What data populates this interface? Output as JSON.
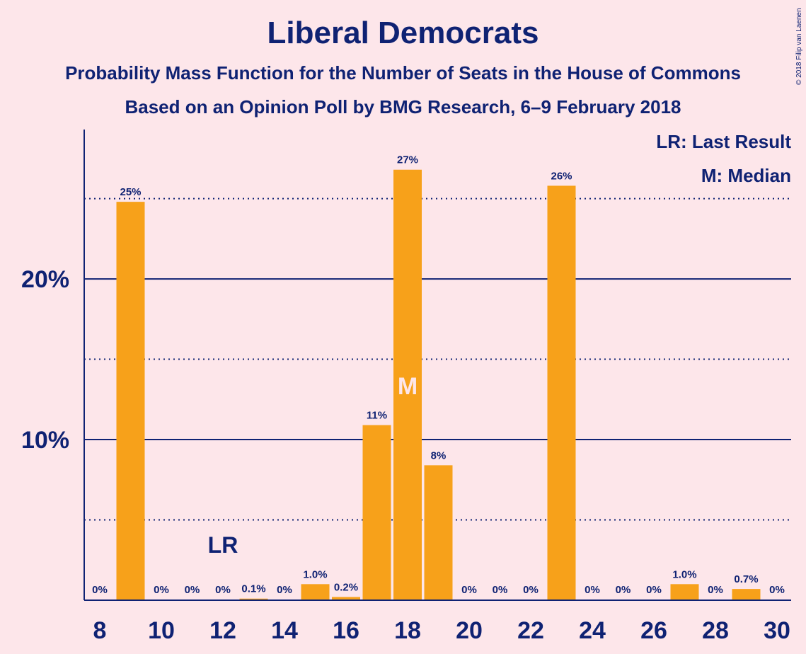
{
  "title": "Liberal Democrats",
  "subtitle_1": "Probability Mass Function for the Number of Seats in the House of Commons",
  "subtitle_2": "Based on an Opinion Poll by BMG Research, 6–9 February 2018",
  "copyright": "© 2018 Filip van Laenen",
  "colors": {
    "background": "#fde6ea",
    "bar": "#f7a11a",
    "text": "#0f2273"
  },
  "legend": {
    "lr": "LR: Last Result",
    "median": "M: Median"
  },
  "chart_data": {
    "type": "bar",
    "categories": [
      8,
      9,
      10,
      11,
      12,
      13,
      14,
      15,
      16,
      17,
      18,
      19,
      20,
      21,
      22,
      23,
      24,
      25,
      26,
      27,
      28,
      29,
      30
    ],
    "values": [
      0,
      24.8,
      0,
      0,
      0,
      0.1,
      0,
      1.0,
      0.2,
      10.9,
      26.8,
      8.4,
      0,
      0,
      0,
      25.8,
      0,
      0,
      0,
      1.0,
      0,
      0.7,
      0
    ],
    "data_labels": [
      "0%",
      "25%",
      "0%",
      "0%",
      "0%",
      "0.1%",
      "0%",
      "1.0%",
      "0.2%",
      "11%",
      "27%",
      "8%",
      "0%",
      "0%",
      "0%",
      "26%",
      "0%",
      "0%",
      "0%",
      "1.0%",
      "0%",
      "0.7%",
      "0%"
    ],
    "x_tick_labels": [
      "8",
      "10",
      "12",
      "14",
      "16",
      "18",
      "20",
      "22",
      "24",
      "26",
      "28",
      "30"
    ],
    "x_ticks": [
      8,
      10,
      12,
      14,
      16,
      18,
      20,
      22,
      24,
      26,
      28,
      30
    ],
    "y_tick_labels": [
      "10%",
      "20%"
    ],
    "y_ticks": [
      10,
      20
    ],
    "y_gridlines_solid": [
      10,
      20
    ],
    "y_gridlines_dotted": [
      5,
      15,
      25
    ],
    "ylim": [
      0,
      29
    ],
    "xlim": [
      7.5,
      30.5
    ],
    "last_result_seat": 12,
    "last_result_label": "LR",
    "median_seat": 18,
    "median_label": "M"
  }
}
